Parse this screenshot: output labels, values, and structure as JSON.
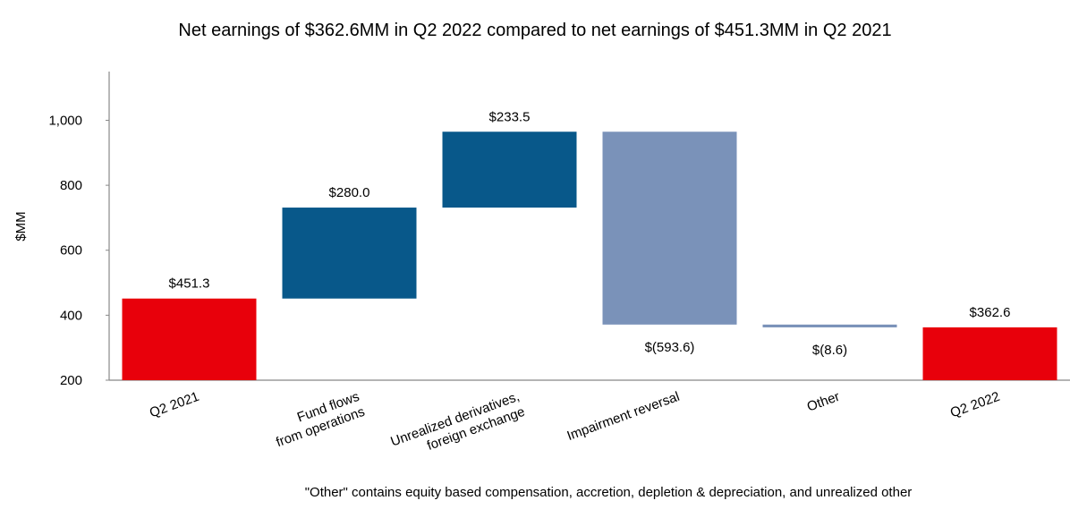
{
  "chart_data": {
    "type": "waterfall",
    "title": "Net earnings of $362.6MM in Q2 2022 compared to net earnings of $451.3MM in Q2 2021",
    "y_label": "$MM",
    "categories": [
      [
        "Q2 2021"
      ],
      [
        "Fund flows",
        "from operations"
      ],
      [
        "Unrealized derivatives,",
        "foreign exchange"
      ],
      [
        "Impairment reversal"
      ],
      [
        "Other"
      ],
      [
        "Q2 2022"
      ]
    ],
    "measure": [
      "total",
      "relative",
      "relative",
      "relative",
      "relative",
      "total"
    ],
    "values": [
      451.3,
      280.0,
      233.5,
      -593.6,
      -8.6,
      362.6
    ],
    "value_labels": [
      "$451.3",
      "$280.0",
      "$233.5",
      "$(593.6)",
      "$(8.6)",
      "$362.6"
    ],
    "colors": {
      "total": "#e8000b",
      "increase": "#08588a",
      "decrease": "#7a92b9"
    },
    "ylim": [
      200,
      1150
    ],
    "yticks": [
      200,
      400,
      600,
      800,
      {
        "value": 1000,
        "label": "1,000"
      }
    ],
    "footnote": "\"Other\" contains equity based compensation, accretion, depletion & depreciation, and unrealized other"
  }
}
